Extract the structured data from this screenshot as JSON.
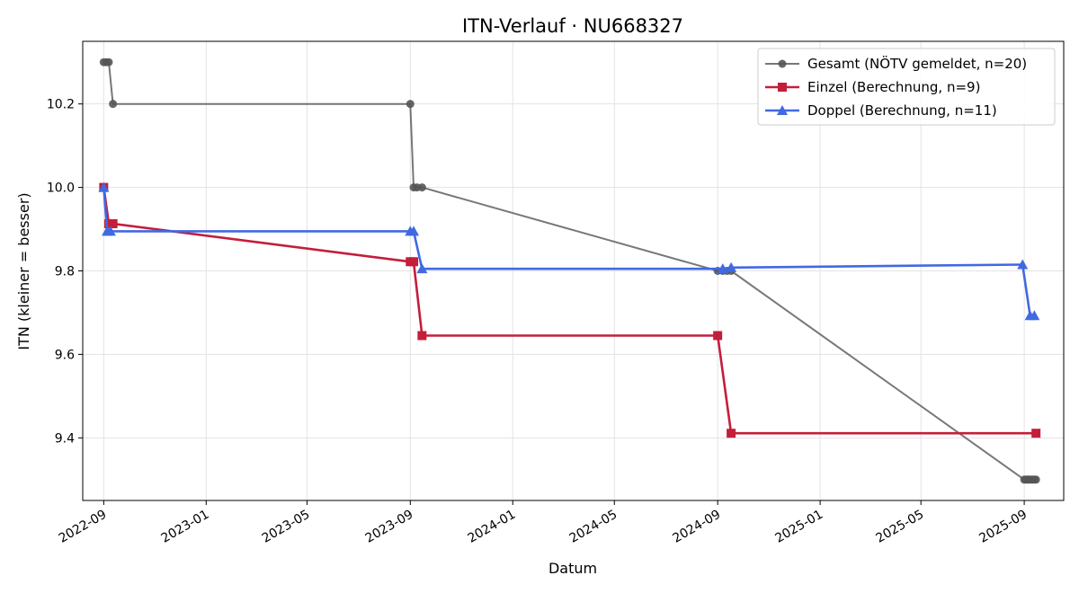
{
  "chart_data": {
    "type": "line",
    "title": "ITN-Verlauf · NU668327",
    "xlabel": "Datum",
    "ylabel": "ITN  (kleiner = besser)",
    "x_type": "date",
    "xlim": [
      "2022-08-07",
      "2025-10-18"
    ],
    "ylim": [
      9.25,
      10.35
    ],
    "x_ticks": [
      "2022-09-01",
      "2023-01-01",
      "2023-05-01",
      "2023-09-01",
      "2024-01-01",
      "2024-05-01",
      "2024-09-01",
      "2025-01-01",
      "2025-05-01",
      "2025-09-01"
    ],
    "x_tick_labels": [
      "2022-09",
      "2023-01",
      "2023-05",
      "2023-09",
      "2024-01",
      "2024-05",
      "2024-09",
      "2025-01",
      "2025-05",
      "2025-09"
    ],
    "y_ticks": [
      9.4,
      9.6,
      9.8,
      10.0,
      10.2
    ],
    "y_tick_labels": [
      "9.4",
      "9.6",
      "9.8",
      "10.0",
      "10.2"
    ],
    "grid": true,
    "legend_position": "top-right",
    "series": [
      {
        "name": "Gesamt (NÖTV gemeldet, n=20)",
        "color": "#555555",
        "marker": "circle",
        "points": [
          [
            "2022-09-01",
            10.3
          ],
          [
            "2022-09-04",
            10.3
          ],
          [
            "2022-09-07",
            10.3
          ],
          [
            "2022-09-12",
            10.2
          ],
          [
            "2023-09-01",
            10.2
          ],
          [
            "2023-09-05",
            10.0
          ],
          [
            "2023-09-09",
            10.0
          ],
          [
            "2023-09-15",
            10.0
          ],
          [
            "2024-09-01",
            9.8
          ],
          [
            "2024-09-07",
            9.8
          ],
          [
            "2024-09-12",
            9.8
          ],
          [
            "2024-09-17",
            9.8
          ],
          [
            "2025-09-01",
            9.3
          ],
          [
            "2025-09-03",
            9.3
          ],
          [
            "2025-09-05",
            9.3
          ],
          [
            "2025-09-07",
            9.3
          ],
          [
            "2025-09-09",
            9.3
          ],
          [
            "2025-09-11",
            9.3
          ],
          [
            "2025-09-13",
            9.3
          ],
          [
            "2025-09-15",
            9.3
          ]
        ]
      },
      {
        "name": "Einzel (Berechnung, n=9)",
        "color": "#c41e3a",
        "marker": "square",
        "points": [
          [
            "2022-09-01",
            10.0
          ],
          [
            "2022-09-07",
            9.913
          ],
          [
            "2022-09-12",
            9.913
          ],
          [
            "2023-09-01",
            9.822
          ],
          [
            "2023-09-05",
            9.822
          ],
          [
            "2023-09-15",
            9.645
          ],
          [
            "2024-09-01",
            9.645
          ],
          [
            "2024-09-17",
            9.411
          ],
          [
            "2025-09-15",
            9.411
          ]
        ]
      },
      {
        "name": "Doppel (Berechnung, n=11)",
        "color": "#4169e1",
        "marker": "triangle",
        "points": [
          [
            "2022-09-01",
            10.0
          ],
          [
            "2022-09-05",
            9.895
          ],
          [
            "2022-09-09",
            9.895
          ],
          [
            "2023-09-01",
            9.895
          ],
          [
            "2023-09-05",
            9.895
          ],
          [
            "2023-09-15",
            9.805
          ],
          [
            "2024-09-07",
            9.805
          ],
          [
            "2024-09-17",
            9.808
          ],
          [
            "2025-08-30",
            9.815
          ],
          [
            "2025-09-08",
            9.693
          ],
          [
            "2025-09-13",
            9.693
          ]
        ]
      }
    ]
  }
}
